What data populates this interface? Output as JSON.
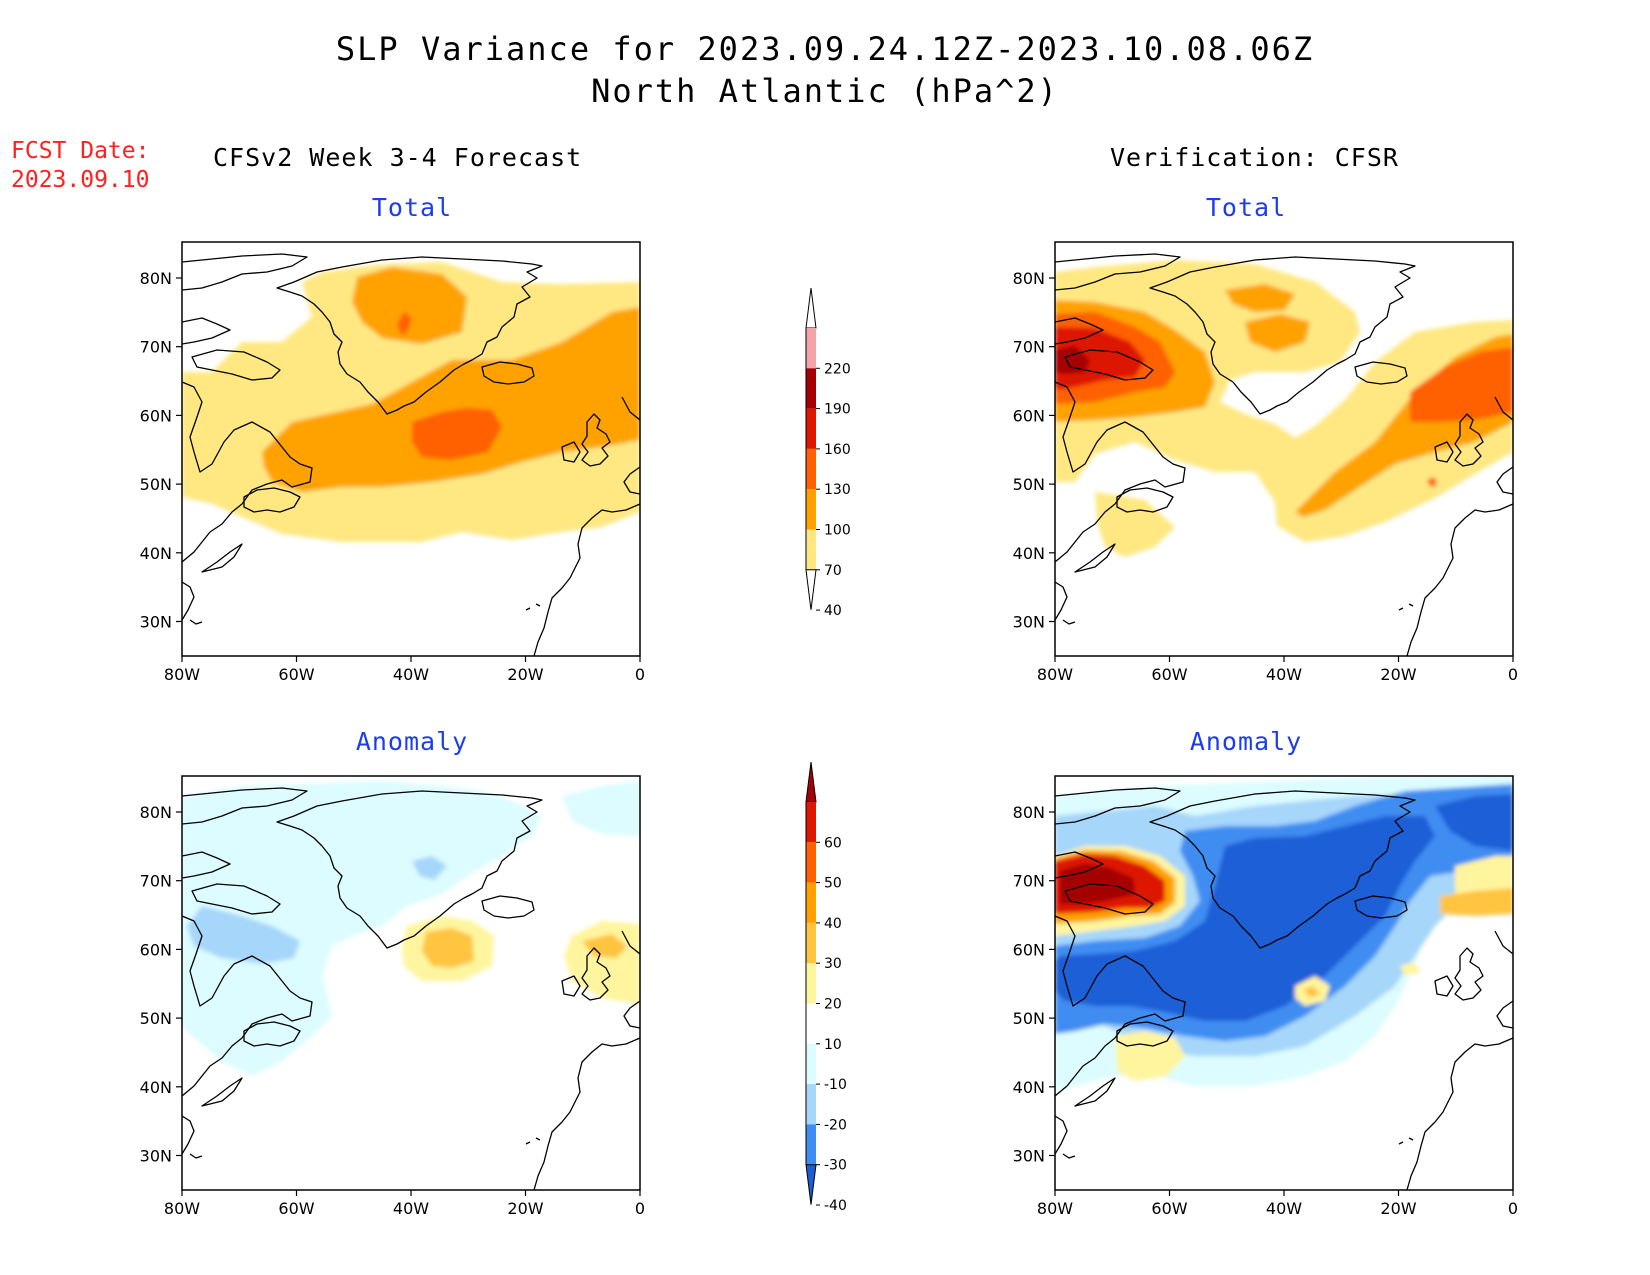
{
  "header": {
    "title_line1": "SLP Variance for 2023.09.24.12Z-2023.10.08.06Z",
    "title_line2": "North Atlantic (hPa^2)",
    "fcst_label": "FCST Date:",
    "fcst_value": "2023.09.10"
  },
  "columns": {
    "left_title": "CFSv2 Week 3-4 Forecast",
    "right_title": "Verification: CFSR"
  },
  "panels": [
    {
      "id": "fcst-total",
      "subtitle": "Total",
      "scale": "total"
    },
    {
      "id": "verif-total",
      "subtitle": "Total",
      "scale": "total"
    },
    {
      "id": "fcst-anomaly",
      "subtitle": "Anomaly",
      "scale": "anomaly"
    },
    {
      "id": "verif-anomaly",
      "subtitle": "Anomaly",
      "scale": "anomaly"
    }
  ],
  "axes": {
    "lon_labels": [
      "80W",
      "60W",
      "40W",
      "20W",
      "0"
    ],
    "lat_labels": [
      "80N",
      "70N",
      "60N",
      "50N",
      "40N",
      "30N"
    ]
  },
  "colorbars": {
    "total": {
      "labels": [
        "220",
        "190",
        "160",
        "130",
        "100",
        "70",
        "40"
      ],
      "colors": [
        "#fde4e6",
        "#f4a3a6",
        "#a50006",
        "#dd1700",
        "#ff6000",
        "#ffa200",
        "#ffe882"
      ]
    },
    "anomaly": {
      "labels": [
        "60",
        "50",
        "40",
        "30",
        "20",
        "10",
        "-10",
        "-20",
        "-30",
        "-40"
      ],
      "colors": [
        "#a50006",
        "#dd1700",
        "#ff6000",
        "#ffa200",
        "#ffc440",
        "#fff59e",
        "#ffffff",
        "#dcfcff",
        "#a6d6fa",
        "#3f8df2",
        "#1a5fd6"
      ]
    }
  }
}
